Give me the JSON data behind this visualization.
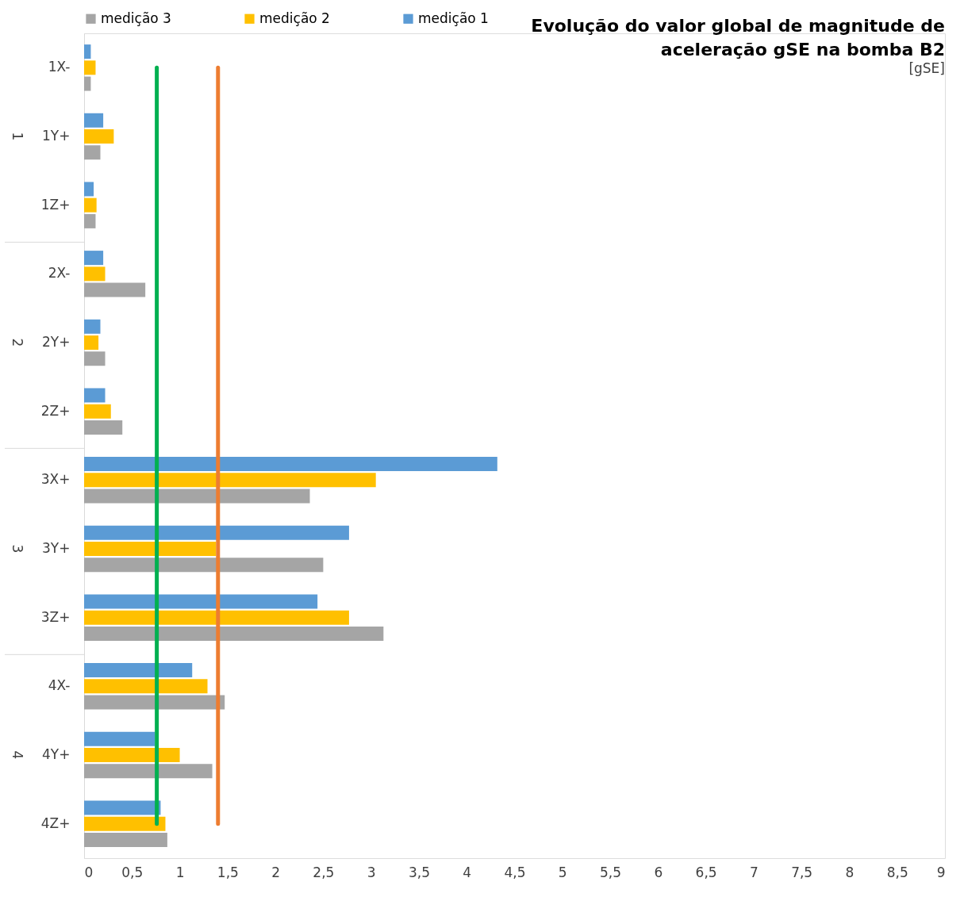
{
  "chart_data": {
    "type": "bar",
    "orientation": "horizontal",
    "title": "Evolução do valor global de magnitude de aceleração gSE na bomba B2",
    "xlabel": "[gSE]",
    "categories": [
      "1X-",
      "1Y+",
      "1Z+",
      "2X-",
      "2Y+",
      "2Z+",
      "3X+",
      "3Y+",
      "3Z+",
      "4X-",
      "4Y+",
      "4Z+"
    ],
    "series": [
      {
        "name": "medição 1",
        "color": "#5b9bd5",
        "values": [
          0.07,
          0.2,
          0.1,
          0.2,
          0.17,
          0.22,
          4.32,
          2.77,
          2.44,
          1.13,
          0.74,
          0.8
        ]
      },
      {
        "name": "medição 2",
        "color": "#ffc000",
        "values": [
          0.12,
          0.31,
          0.13,
          0.22,
          0.15,
          0.28,
          3.05,
          1.38,
          2.77,
          1.29,
          1.0,
          0.85
        ]
      },
      {
        "name": "medição 3",
        "color": "#a5a5a5",
        "values": [
          0.07,
          0.17,
          0.12,
          0.64,
          0.22,
          0.4,
          2.36,
          2.5,
          3.13,
          1.47,
          1.34,
          0.87
        ]
      }
    ],
    "xlim": [
      0,
      9
    ],
    "xticks": [
      0,
      {
        "value": 0.5,
        "label": "0,5"
      },
      1,
      {
        "value": 1.5,
        "label": "1,5"
      },
      2,
      {
        "value": 2.5,
        "label": "2,5"
      },
      3,
      {
        "value": 3.5,
        "label": "3,5"
      },
      4,
      {
        "value": 4.5,
        "label": "4,5"
      },
      5,
      {
        "value": 5.5,
        "label": "5,5"
      },
      6,
      {
        "value": 6.5,
        "label": "6,5"
      },
      7,
      {
        "value": 7.5,
        "label": "7,5"
      },
      8,
      {
        "value": 8.5,
        "label": "8,5"
      },
      9
    ],
    "ref_lines": [
      {
        "axis": "x",
        "value": 0.76,
        "color": "#00b050"
      },
      {
        "axis": "x",
        "value": 1.4,
        "color": "#ed7d31"
      }
    ],
    "annotations": [
      "1",
      "2",
      "3",
      "4"
    ],
    "legend": "top left",
    "grid": false
  }
}
